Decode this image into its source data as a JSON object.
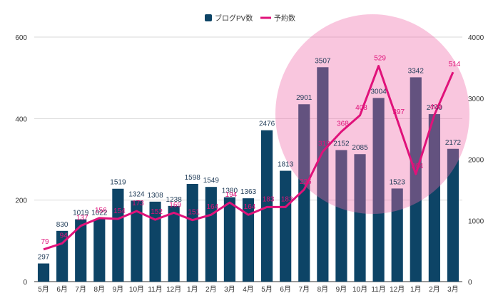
{
  "chart_data": {
    "type": "bar+line",
    "title": "",
    "categories": [
      "5月",
      "6月",
      "7月",
      "8月",
      "9月",
      "10月",
      "11月",
      "12月",
      "1月",
      "2月",
      "3月",
      "4月",
      "5月",
      "6月",
      "7月",
      "8月",
      "9月",
      "10月",
      "11月",
      "12月",
      "1月",
      "2月",
      "3月"
    ],
    "series": [
      {
        "name": "ブログPV数",
        "type": "bar",
        "axis": "right",
        "color": "#0d4466",
        "values": [
          297,
          830,
          1019,
          1022,
          1519,
          1324,
          1308,
          1238,
          1598,
          1549,
          1380,
          1363,
          2476,
          1813,
          2901,
          3507,
          2152,
          2085,
          3004,
          1523,
          3342,
          2740,
          2172
        ]
      },
      {
        "name": "予約数",
        "type": "line",
        "axis": "left",
        "color": "#e0127a",
        "values": [
          79,
          94,
          137,
          156,
          154,
          173,
          152,
          169,
          151,
          164,
          194,
          164,
          183,
          183,
          226,
          319,
          368,
          408,
          529,
          397,
          264,
          409,
          514
        ]
      }
    ],
    "left_axis": {
      "min": 0,
      "max": 600,
      "ticks": [
        0,
        200,
        400,
        600
      ]
    },
    "right_axis": {
      "min": 0,
      "max": 4000,
      "ticks": [
        0,
        1000,
        2000,
        3000,
        4000
      ]
    },
    "highlight": {
      "shape": "ellipse",
      "color": "#f06aa8",
      "label": ""
    },
    "legend_position": "top-center",
    "grid": true
  }
}
